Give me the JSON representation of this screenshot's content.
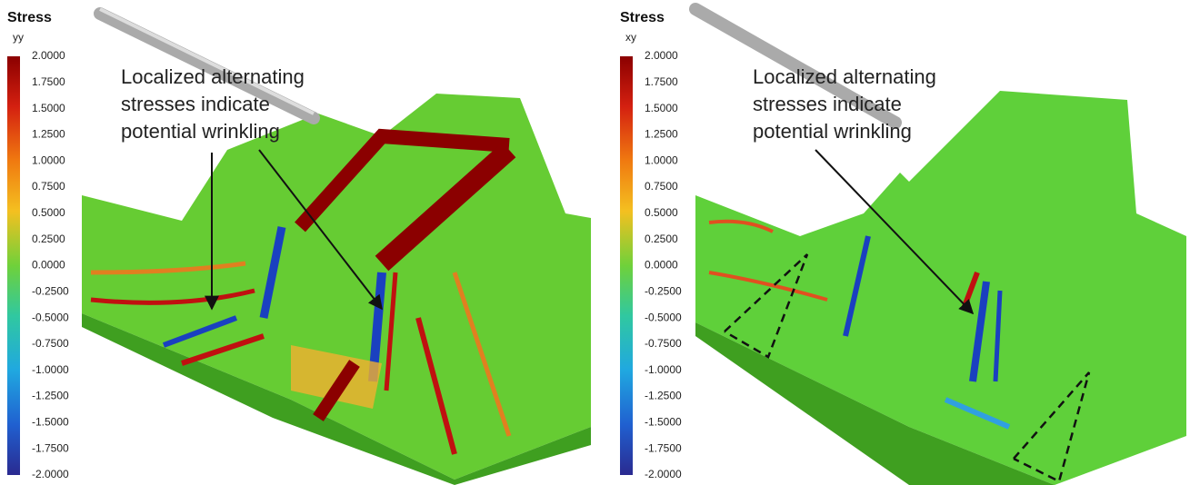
{
  "panels": [
    {
      "title": "Stress",
      "component": "yy",
      "ticks": [
        "2.0000",
        "1.7500",
        "1.5000",
        "1.2500",
        "1.0000",
        "0.7500",
        "0.5000",
        "0.2500",
        "0.0000",
        "-0.2500",
        "-0.5000",
        "-0.7500",
        "-1.0000",
        "-1.2500",
        "-1.5000",
        "-1.7500",
        "-2.0000"
      ],
      "annotation": [
        "Localized alternating",
        "stresses indicate",
        "potential wrinkling"
      ]
    },
    {
      "title": "Stress",
      "component": "xy",
      "ticks": [
        "2.0000",
        "1.7500",
        "1.5000",
        "1.2500",
        "1.0000",
        "0.7500",
        "0.5000",
        "0.2500",
        "0.0000",
        "-0.2500",
        "-0.5000",
        "-0.7500",
        "-1.0000",
        "-1.2500",
        "-1.5000",
        "-1.7500",
        "-2.0000"
      ],
      "annotation": [
        "Localized alternating",
        "stresses indicate",
        "potential wrinkling"
      ]
    }
  ]
}
